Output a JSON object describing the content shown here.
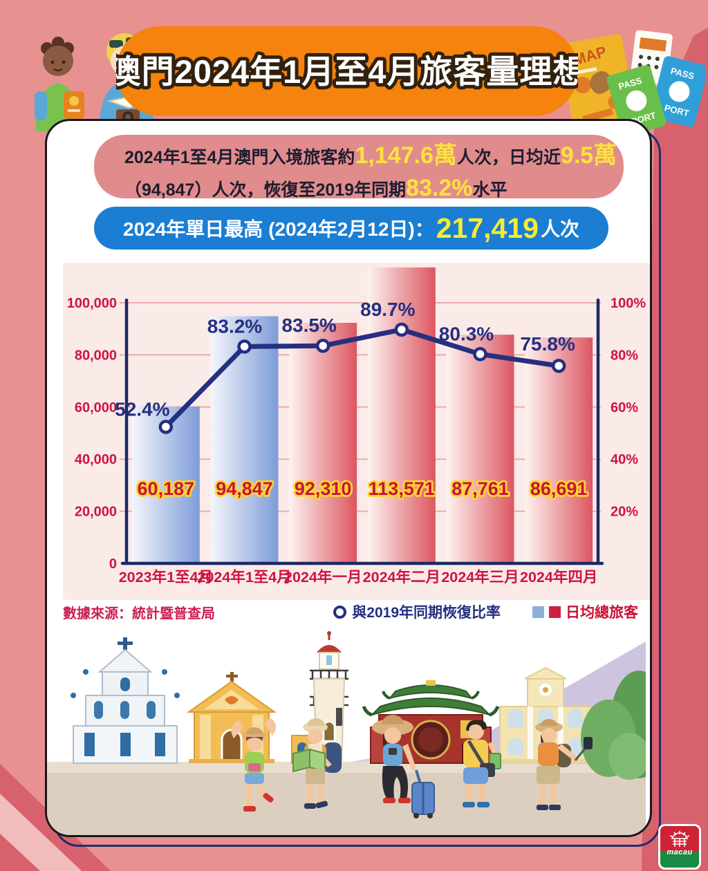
{
  "header": {
    "title": "澳門2024年1月至4月旅客量理想"
  },
  "summary": {
    "box1": {
      "line1": [
        {
          "t": "2024年1至4月澳門入境旅客約"
        },
        {
          "t": "1,147.6萬"
        },
        {
          "t": "人次，日均近"
        },
        {
          "t": "9.5萬"
        }
      ],
      "line2": [
        {
          "t": "（94,847）人次，恢復至2019年同期"
        },
        {
          "t": "83.2%"
        },
        {
          "t": "水平"
        }
      ]
    },
    "box2": [
      {
        "t": "2024年單日最高 (2024年2月12日)："
      },
      {
        "t": "217,419"
      },
      {
        "t": "人次"
      }
    ]
  },
  "chart_data": {
    "type": "bar",
    "subtype": "bar+line combo",
    "categories": [
      "2023年1至4月",
      "2024年1至4月",
      "2024年一月",
      "2024年二月",
      "2024年三月",
      "2024年四月"
    ],
    "series": [
      {
        "name": "日均總旅客",
        "type": "bar",
        "axis": "left",
        "values": [
          60187,
          94847,
          92310,
          113571,
          87761,
          86691
        ],
        "value_labels": [
          "60,187",
          "94,847",
          "92,310",
          "113,571",
          "87,761",
          "86,691"
        ],
        "bar_styles": [
          "blue",
          "blue",
          "red",
          "red",
          "red",
          "red"
        ]
      },
      {
        "name": "與2019年同期恢復比率",
        "type": "line",
        "axis": "right",
        "values": [
          52.4,
          83.2,
          83.5,
          89.7,
          80.3,
          75.8
        ],
        "point_labels": [
          "52.4%",
          "83.2%",
          "83.5%",
          "89.7%",
          "80.3%",
          "75.8%"
        ]
      }
    ],
    "left_axis": {
      "min": 0,
      "max": 100000,
      "ticks": [
        "0",
        "20,000",
        "40,000",
        "60,000",
        "80,000",
        "100,000"
      ]
    },
    "right_axis": {
      "min": 0,
      "max": 100,
      "ticks": [
        "20%",
        "40%",
        "60%",
        "80%",
        "100%"
      ]
    },
    "grid": true,
    "legend_position": "bottom-right",
    "colors": {
      "bar_blue_from": "#f4f6fb",
      "bar_blue_to": "#7e9cd8",
      "bar_red_from": "#fdf3f0",
      "bar_red_to": "#dc5661",
      "line": "#252f80",
      "axis": "#1b2a63",
      "grid": "#eeaaaa",
      "tick_label": "#cf1340",
      "value_fill": "#c8133d",
      "value_stroke": "#ffd52e"
    }
  },
  "legend": {
    "line_label": "與2019年同期恢復比率",
    "bar_label": "日均總旅客"
  },
  "source": "數據來源：統計暨普查局",
  "decor": {
    "map": "MAP",
    "pass": "PASS",
    "port": "PORT"
  },
  "footer": {
    "logo_text": "macau"
  },
  "colors": {
    "background": "#e79191",
    "background_rose": "#d8616e",
    "banner_orange": "#f5830d",
    "box_pink": "#e18c8c",
    "box_blue": "#1b7ed2",
    "highlight_yellow": "#ffe23d"
  }
}
